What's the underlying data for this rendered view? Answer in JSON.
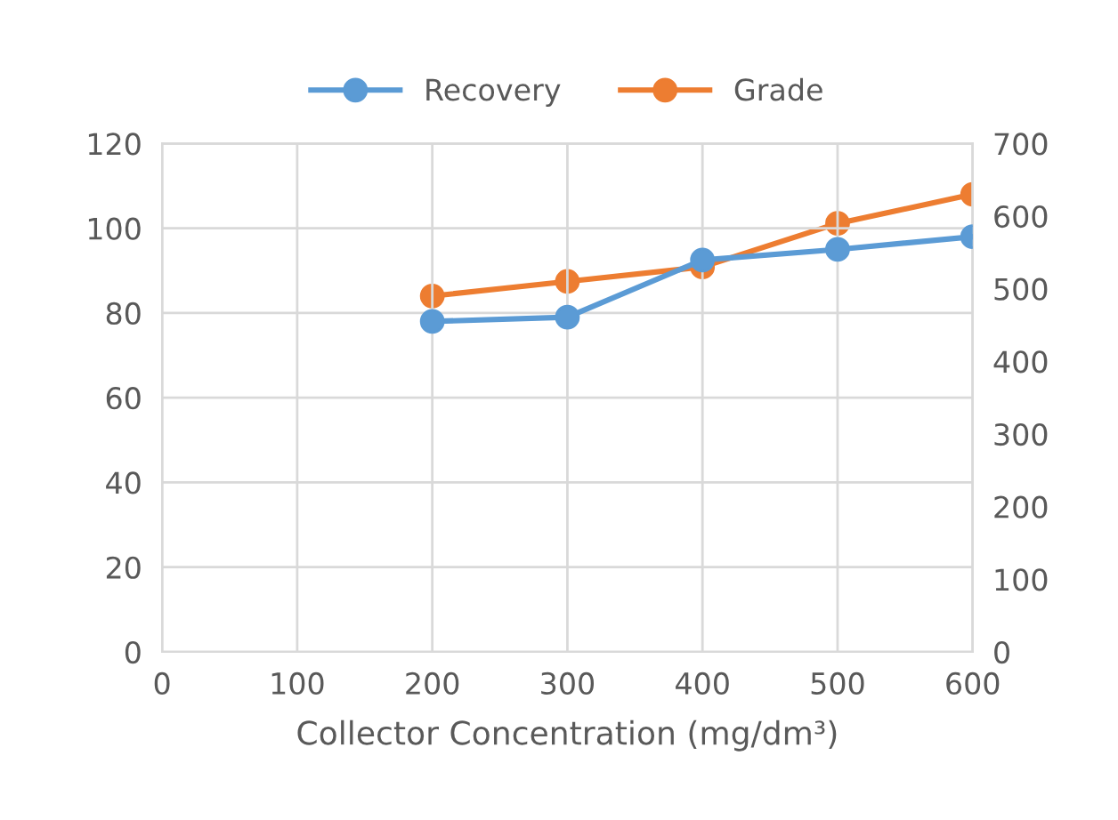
{
  "chart_data": {
    "type": "line",
    "xlabel": "Collector Concentration (mg/dm³)",
    "x": [
      200,
      300,
      400,
      500,
      600
    ],
    "series": [
      {
        "name": "Recovery",
        "color": "#5b9bd5",
        "values": [
          78,
          79,
          92.5,
          95,
          98
        ]
      },
      {
        "name": "Grade",
        "color": "#ed7d31",
        "values": [
          490,
          510,
          530,
          590,
          630
        ],
        "axis": "y2"
      }
    ],
    "xlim": [
      0,
      600
    ],
    "xticks": [
      0,
      100,
      200,
      300,
      400,
      500,
      600
    ],
    "ylim": [
      0,
      120
    ],
    "yticks": [
      0,
      20,
      40,
      60,
      80,
      100,
      120
    ],
    "y2lim": [
      0,
      700
    ],
    "y2ticks": [
      0,
      100,
      200,
      300,
      400,
      500,
      600,
      700
    ],
    "grid": true,
    "legend": "top",
    "marker": "circle",
    "line_style": "solid"
  }
}
